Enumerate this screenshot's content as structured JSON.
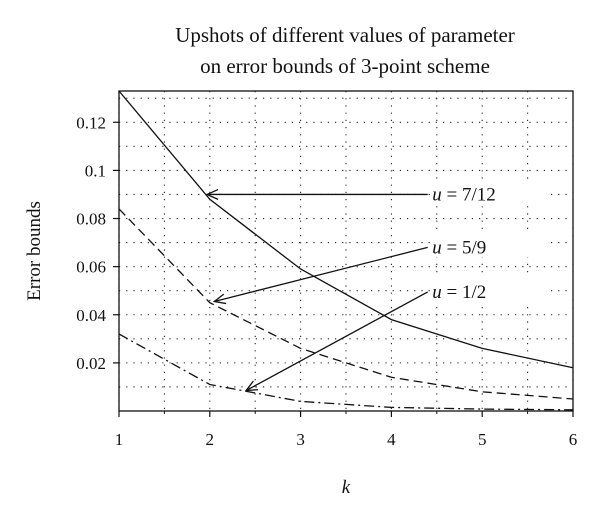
{
  "chart_data": {
    "type": "line",
    "title_lines": [
      "Upshots of different values of parameter",
      "on error bounds of 3-point scheme"
    ],
    "xlabel": "k",
    "ylabel": "Error bounds",
    "xlim": [
      1,
      6
    ],
    "ylim": [
      0.0,
      0.133
    ],
    "x_ticks": [
      1,
      2,
      3,
      4,
      5,
      6
    ],
    "y_ticks": [
      0.02,
      0.04,
      0.06,
      0.08,
      0.1,
      0.12
    ],
    "y_tick_labels": [
      "0.02",
      "0.04",
      "0.06",
      "0.08",
      "0.1",
      "0.12"
    ],
    "grid": "dotted",
    "x": [
      1,
      2,
      3,
      4,
      5,
      6
    ],
    "series": [
      {
        "key": "u712",
        "style": "solid",
        "color": "#111111",
        "values": [
          0.133,
          0.088,
          0.059,
          0.038,
          0.026,
          0.018
        ]
      },
      {
        "key": "u59",
        "style": "dashed",
        "color": "#111111",
        "values": [
          0.084,
          0.045,
          0.026,
          0.014,
          0.008,
          0.005
        ]
      },
      {
        "key": "u12",
        "style": "dashdot",
        "color": "#111111",
        "values": [
          0.032,
          0.011,
          0.004,
          0.0015,
          0.0008,
          0.0005
        ]
      }
    ],
    "annotations": [
      {
        "name": "annotation-u-7-12",
        "series": "u712",
        "label_lhs": "u",
        "label_rhs": " = 7/12",
        "text_at": [
          4.45,
          0.09
        ],
        "arrow_from": [
          4.4,
          0.09
        ],
        "arrow_to": [
          1.97,
          0.09
        ]
      },
      {
        "name": "annotation-u-5-9",
        "series": "u59",
        "label_lhs": "u",
        "label_rhs": " = 5/9",
        "text_at": [
          4.45,
          0.068
        ],
        "arrow_from": [
          4.4,
          0.068
        ],
        "arrow_to": [
          2.05,
          0.0455
        ]
      },
      {
        "name": "annotation-u-1-2",
        "series": "u12",
        "label_lhs": "u",
        "label_rhs": " = 1/2",
        "text_at": [
          4.45,
          0.0495
        ],
        "arrow_from": [
          4.4,
          0.0495
        ],
        "arrow_to": [
          2.4,
          0.0085
        ]
      }
    ]
  }
}
